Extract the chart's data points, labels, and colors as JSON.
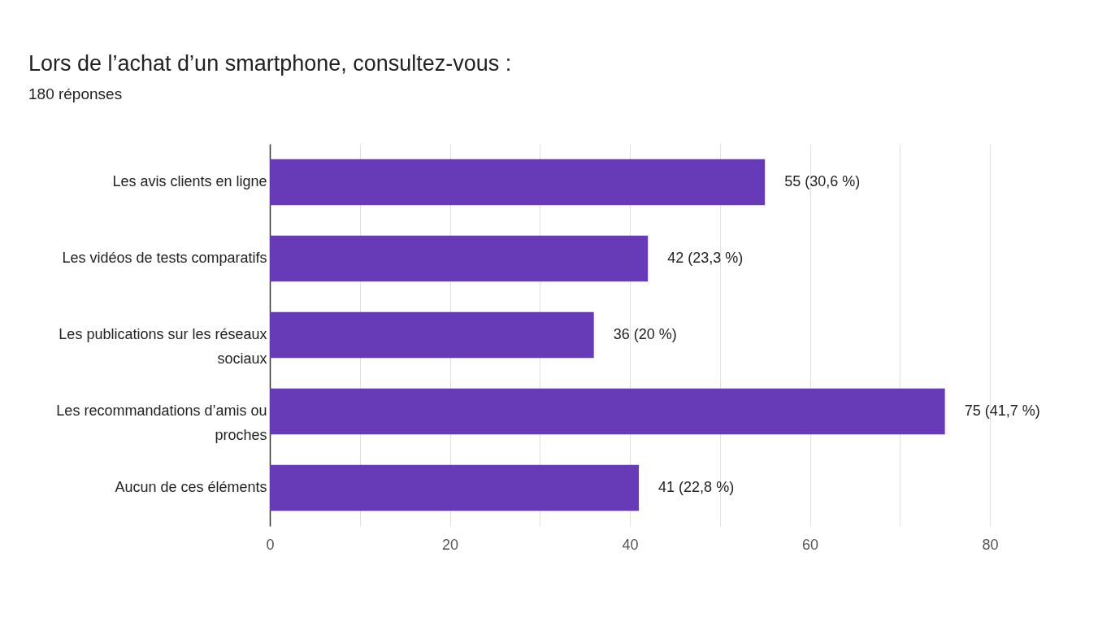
{
  "chart_data": {
    "type": "bar",
    "orientation": "horizontal",
    "title": "Lors de l’achat d’un smartphone, consultez-vous :",
    "subtitle": "180 réponses",
    "categories": [
      "Les avis clients en ligne",
      "Les vidéos de tests comparatifs",
      "Les publications sur les réseaux sociaux",
      "Les recommandations d’amis ou proches",
      "Aucun de ces éléments"
    ],
    "values": [
      55,
      42,
      36,
      75,
      41
    ],
    "value_labels": [
      "55 (30,6 %)",
      "42 (23,3 %)",
      "36 (20 %)",
      "75 (41,7 %)",
      "41 (22,8 %)"
    ],
    "color": "#673ab7",
    "xlim": [
      0,
      80
    ],
    "xticks": [
      0,
      {
        "value": 10,
        "label": null
      },
      20,
      {
        "value": 30,
        "label": null
      },
      40,
      {
        "value": 50,
        "label": null
      },
      60,
      {
        "value": 70,
        "label": null
      },
      80
    ],
    "grid": "x"
  }
}
